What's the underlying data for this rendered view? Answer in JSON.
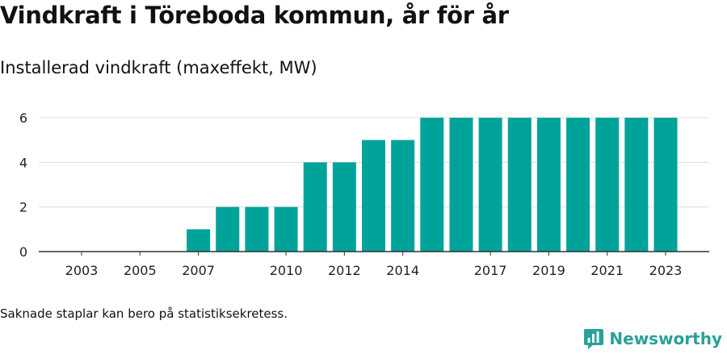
{
  "header": {
    "title": "Vindkraft i Töreboda kommun, år för år",
    "subtitle": "Installerad vindkraft (maxeffekt, MW)"
  },
  "footer": {
    "note": "Saknade staplar kan bero på statistiksekretess.",
    "brand": "Newsworthy"
  },
  "colors": {
    "bar": "#00a39a",
    "grid": "#dddddd",
    "axis": "#333333",
    "brand": "#2aa198"
  },
  "icons": {
    "brand_logo": "newsworthy-logo-icon"
  },
  "chart_data": {
    "type": "bar",
    "title": "Vindkraft i Töreboda kommun, år för år",
    "subtitle": "Installerad vindkraft (maxeffekt, MW)",
    "xlabel": "",
    "ylabel": "",
    "categories": [
      "2003",
      "2004",
      "2005",
      "2006",
      "2007",
      "2008",
      "2009",
      "2010",
      "2011",
      "2012",
      "2013",
      "2014",
      "2015",
      "2016",
      "2017",
      "2018",
      "2019",
      "2020",
      "2021",
      "2022",
      "2023"
    ],
    "values": [
      0,
      0,
      0,
      0,
      1,
      2,
      2,
      2,
      4,
      4,
      5,
      5,
      6,
      6,
      6,
      6,
      6,
      6,
      6,
      6,
      6
    ],
    "x_tick_labels": [
      "2003",
      "2005",
      "2007",
      "2010",
      "2012",
      "2014",
      "2017",
      "2019",
      "2021",
      "2023"
    ],
    "y_ticks": [
      0,
      2,
      4,
      6
    ],
    "ylim": [
      0,
      6.2
    ],
    "grid": true,
    "legend": "none"
  }
}
